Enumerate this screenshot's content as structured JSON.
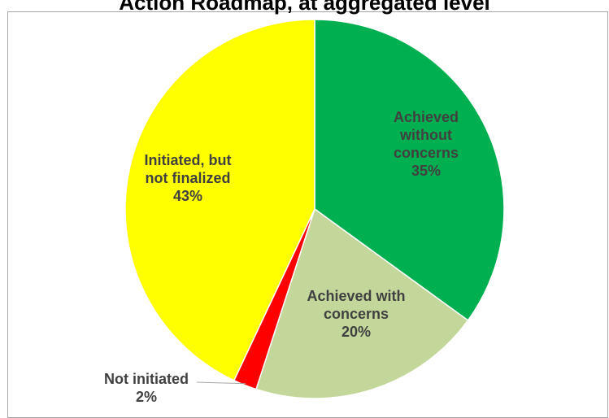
{
  "chart_data": {
    "type": "pie",
    "title": "Action Roadmap, at aggregated level",
    "slices": [
      {
        "name": "Achieved without concerns",
        "label_lines": [
          "Achieved",
          "without",
          "concerns"
        ],
        "value": 35,
        "value_label": "35%",
        "color": "#00b050"
      },
      {
        "name": "Achieved with concerns",
        "label_lines": [
          "Achieved with",
          "concerns"
        ],
        "value": 20,
        "value_label": "20%",
        "color": "#c4d79b"
      },
      {
        "name": "Not initiated",
        "label_lines": [
          "Not initiated"
        ],
        "value": 2,
        "value_label": "2%",
        "color": "#ff0000"
      },
      {
        "name": "Initiated, but not finalized",
        "label_lines": [
          "Initiated, but",
          "not finalized"
        ],
        "value": 43,
        "value_label": "43%",
        "color": "#ffff00"
      }
    ],
    "start_angle": "12 o'clock",
    "direction": "clockwise",
    "legend": "none"
  }
}
